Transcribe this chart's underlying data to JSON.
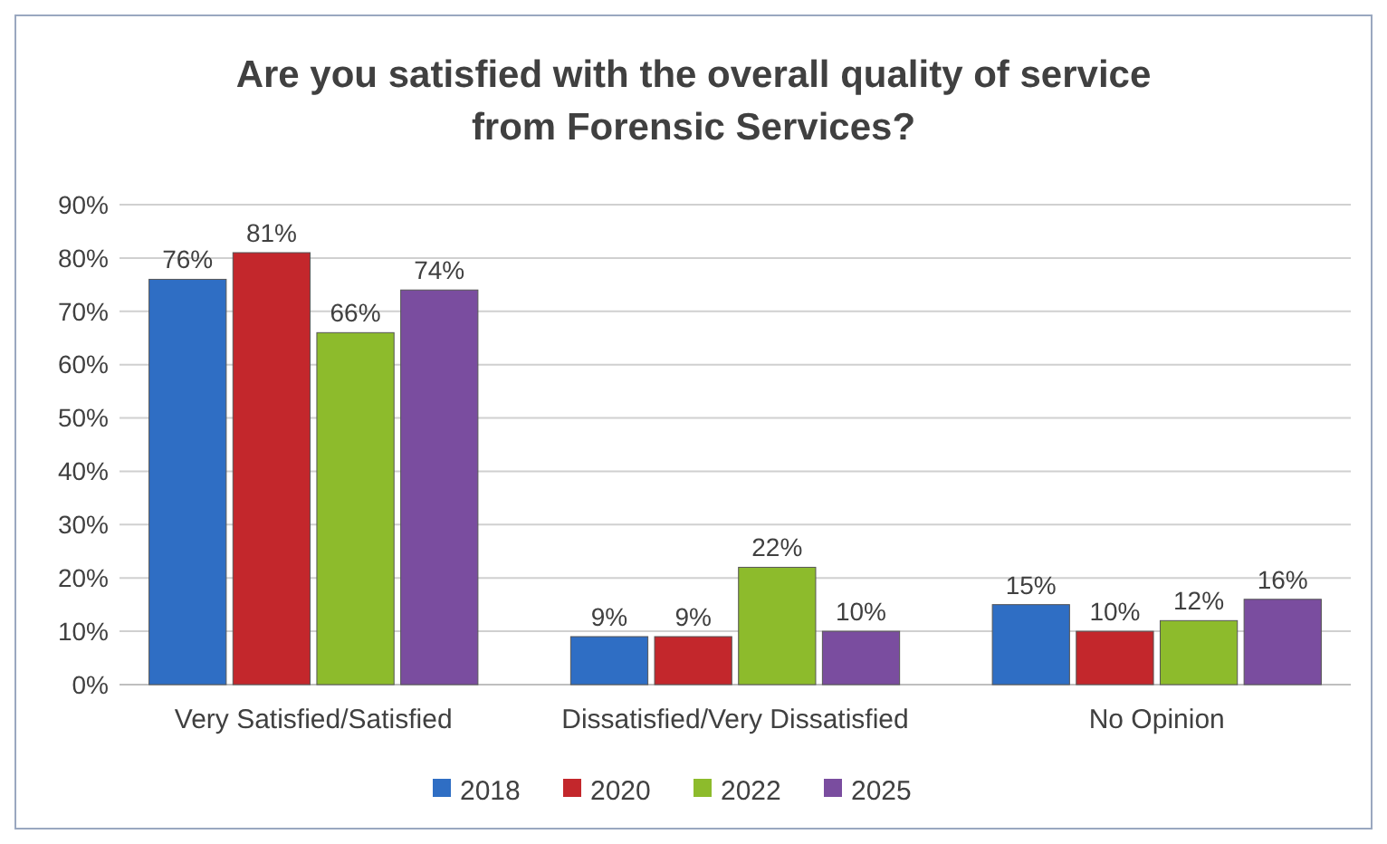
{
  "chart_data": {
    "type": "bar",
    "title": "Are you satisfied with the overall quality of service from Forensic Services?",
    "categories": [
      "Very Satisfied/Satisfied",
      "Dissatisfied/Very Dissatisfied",
      "No Opinion"
    ],
    "series": [
      {
        "name": "2018",
        "color": "#2f6ec4",
        "values": [
          76,
          9,
          15
        ],
        "value_labels": [
          "76%",
          "9%",
          "15%"
        ]
      },
      {
        "name": "2020",
        "color": "#c3272c",
        "values": [
          81,
          9,
          10
        ],
        "value_labels": [
          "81%",
          "9%",
          "10%"
        ]
      },
      {
        "name": "2022",
        "color": "#8dbb2c",
        "values": [
          66,
          22,
          12
        ],
        "value_labels": [
          "66%",
          "22%",
          "12%"
        ]
      },
      {
        "name": "2025",
        "color": "#7a4d9f",
        "values": [
          74,
          10,
          16
        ],
        "value_labels": [
          "74%",
          "10%",
          "16%"
        ]
      }
    ],
    "ylim": [
      0,
      90
    ],
    "yticks": [
      {
        "value": 0,
        "label": "0%"
      },
      {
        "value": 10,
        "label": "10%"
      },
      {
        "value": 20,
        "label": "20%"
      },
      {
        "value": 30,
        "label": "30%"
      },
      {
        "value": 40,
        "label": "40%"
      },
      {
        "value": 50,
        "label": "50%"
      },
      {
        "value": 60,
        "label": "60%"
      },
      {
        "value": 70,
        "label": "70%"
      },
      {
        "value": 80,
        "label": "80%"
      },
      {
        "value": 90,
        "label": "90%"
      }
    ],
    "grid": "y",
    "legend": "bottom"
  }
}
